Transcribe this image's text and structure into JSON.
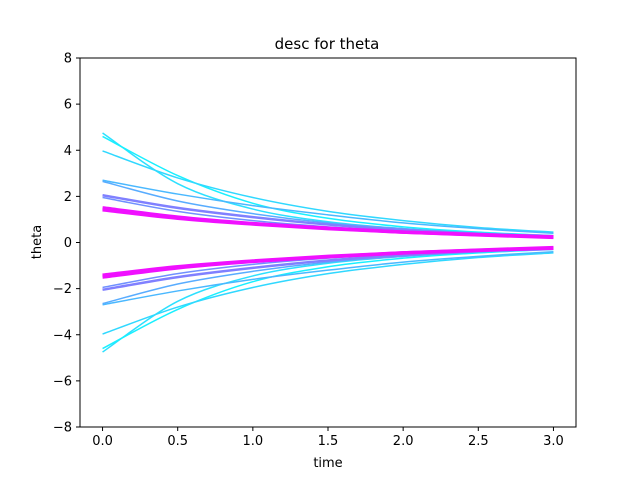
{
  "chart_data": {
    "type": "line",
    "title": "desc for theta",
    "xlabel": "time",
    "ylabel": "theta",
    "xlim": [
      -0.15,
      3.15
    ],
    "ylim": [
      -8,
      8
    ],
    "xticks": [
      0.0,
      0.5,
      1.0,
      1.5,
      2.0,
      2.5,
      3.0
    ],
    "xtick_labels": [
      "0.0",
      "0.5",
      "1.0",
      "1.5",
      "2.0",
      "2.5",
      "3.0"
    ],
    "yticks": [
      -8,
      -6,
      -4,
      -2,
      0,
      2,
      4,
      6,
      8
    ],
    "ytick_labels": [
      "−8",
      "−6",
      "−4",
      "−2",
      "0",
      "2",
      "4",
      "6",
      "8"
    ],
    "grid": false,
    "series": [
      {
        "color": "#2ce0ff",
        "x": [
          0,
          0.5,
          1.0,
          1.5,
          2.0,
          2.5,
          3.0
        ],
        "values": [
          4.75,
          2.55,
          1.45,
          0.9,
          0.6,
          0.42,
          0.3
        ]
      },
      {
        "color": "#2ce0ff",
        "x": [
          0,
          0.5,
          1.0,
          1.5,
          2.0,
          2.5,
          3.0
        ],
        "values": [
          -4.75,
          -2.55,
          -1.45,
          -0.9,
          -0.6,
          -0.42,
          -0.3
        ]
      },
      {
        "color": "#18f0ff",
        "x": [
          0,
          0.5,
          1.0,
          1.5,
          2.0,
          2.5,
          3.0
        ],
        "values": [
          4.6,
          2.9,
          1.7,
          1.05,
          0.68,
          0.45,
          0.3
        ]
      },
      {
        "color": "#18f0ff",
        "x": [
          0,
          0.5,
          1.0,
          1.5,
          2.0,
          2.5,
          3.0
        ],
        "values": [
          -4.6,
          -2.9,
          -1.7,
          -1.05,
          -0.68,
          -0.45,
          -0.3
        ]
      },
      {
        "color": "#30d8ff",
        "x": [
          0,
          0.5,
          1.0,
          1.5,
          2.0,
          2.5,
          3.0
        ],
        "values": [
          3.97,
          2.8,
          1.95,
          1.35,
          0.95,
          0.65,
          0.45
        ]
      },
      {
        "color": "#30d8ff",
        "x": [
          0,
          0.5,
          1.0,
          1.5,
          2.0,
          2.5,
          3.0
        ],
        "values": [
          -3.97,
          -2.8,
          -1.95,
          -1.35,
          -0.95,
          -0.65,
          -0.45
        ]
      },
      {
        "color": "#4ab8ff",
        "x": [
          0,
          0.5,
          1.0,
          1.5,
          2.0,
          2.5,
          3.0
        ],
        "values": [
          2.7,
          2.1,
          1.6,
          1.2,
          0.85,
          0.6,
          0.4
        ]
      },
      {
        "color": "#4ab8ff",
        "x": [
          0,
          0.5,
          1.0,
          1.5,
          2.0,
          2.5,
          3.0
        ],
        "values": [
          -2.7,
          -2.1,
          -1.6,
          -1.2,
          -0.85,
          -0.6,
          -0.4
        ]
      },
      {
        "color": "#58acff",
        "x": [
          0,
          0.5,
          1.0,
          1.5,
          2.0,
          2.5,
          3.0
        ],
        "values": [
          2.65,
          1.8,
          1.25,
          0.85,
          0.6,
          0.4,
          0.28
        ]
      },
      {
        "color": "#58acff",
        "x": [
          0,
          0.5,
          1.0,
          1.5,
          2.0,
          2.5,
          3.0
        ],
        "values": [
          -2.65,
          -1.8,
          -1.25,
          -0.85,
          -0.6,
          -0.4,
          -0.28
        ]
      },
      {
        "color": "#8080ff",
        "x": [
          0,
          0.5,
          1.0,
          1.5,
          2.0,
          2.5,
          3.0
        ],
        "values": [
          2.05,
          1.5,
          1.1,
          0.78,
          0.55,
          0.38,
          0.26
        ]
      },
      {
        "color": "#8080ff",
        "x": [
          0,
          0.5,
          1.0,
          1.5,
          2.0,
          2.5,
          3.0
        ],
        "values": [
          -2.05,
          -1.5,
          -1.1,
          -0.78,
          -0.55,
          -0.38,
          -0.26
        ]
      },
      {
        "color": "#7090ff",
        "x": [
          0,
          0.5,
          1.0,
          1.5,
          2.0,
          2.5,
          3.0
        ],
        "values": [
          1.95,
          1.35,
          0.95,
          0.68,
          0.48,
          0.34,
          0.24
        ]
      },
      {
        "color": "#7090ff",
        "x": [
          0,
          0.5,
          1.0,
          1.5,
          2.0,
          2.5,
          3.0
        ],
        "values": [
          -1.95,
          -1.35,
          -0.95,
          -0.68,
          -0.48,
          -0.34,
          -0.24
        ]
      },
      {
        "color": "#ee10ff",
        "x": [
          0,
          0.5,
          1.0,
          1.5,
          2.0,
          2.5,
          3.0
        ],
        "values": [
          1.5,
          1.1,
          0.82,
          0.62,
          0.45,
          0.33,
          0.22
        ]
      },
      {
        "color": "#ee10ff",
        "x": [
          0,
          0.5,
          1.0,
          1.5,
          2.0,
          2.5,
          3.0
        ],
        "values": [
          -1.5,
          -1.1,
          -0.82,
          -0.62,
          -0.45,
          -0.33,
          -0.22
        ]
      },
      {
        "color": "#f010ff",
        "x": [
          0,
          0.5,
          1.0,
          1.5,
          2.0,
          2.5,
          3.0
        ],
        "values": [
          1.42,
          1.05,
          0.8,
          0.6,
          0.45,
          0.34,
          0.25
        ]
      },
      {
        "color": "#f010ff",
        "x": [
          0,
          0.5,
          1.0,
          1.5,
          2.0,
          2.5,
          3.0
        ],
        "values": [
          -1.42,
          -1.05,
          -0.8,
          -0.6,
          -0.45,
          -0.34,
          -0.25
        ]
      }
    ]
  }
}
